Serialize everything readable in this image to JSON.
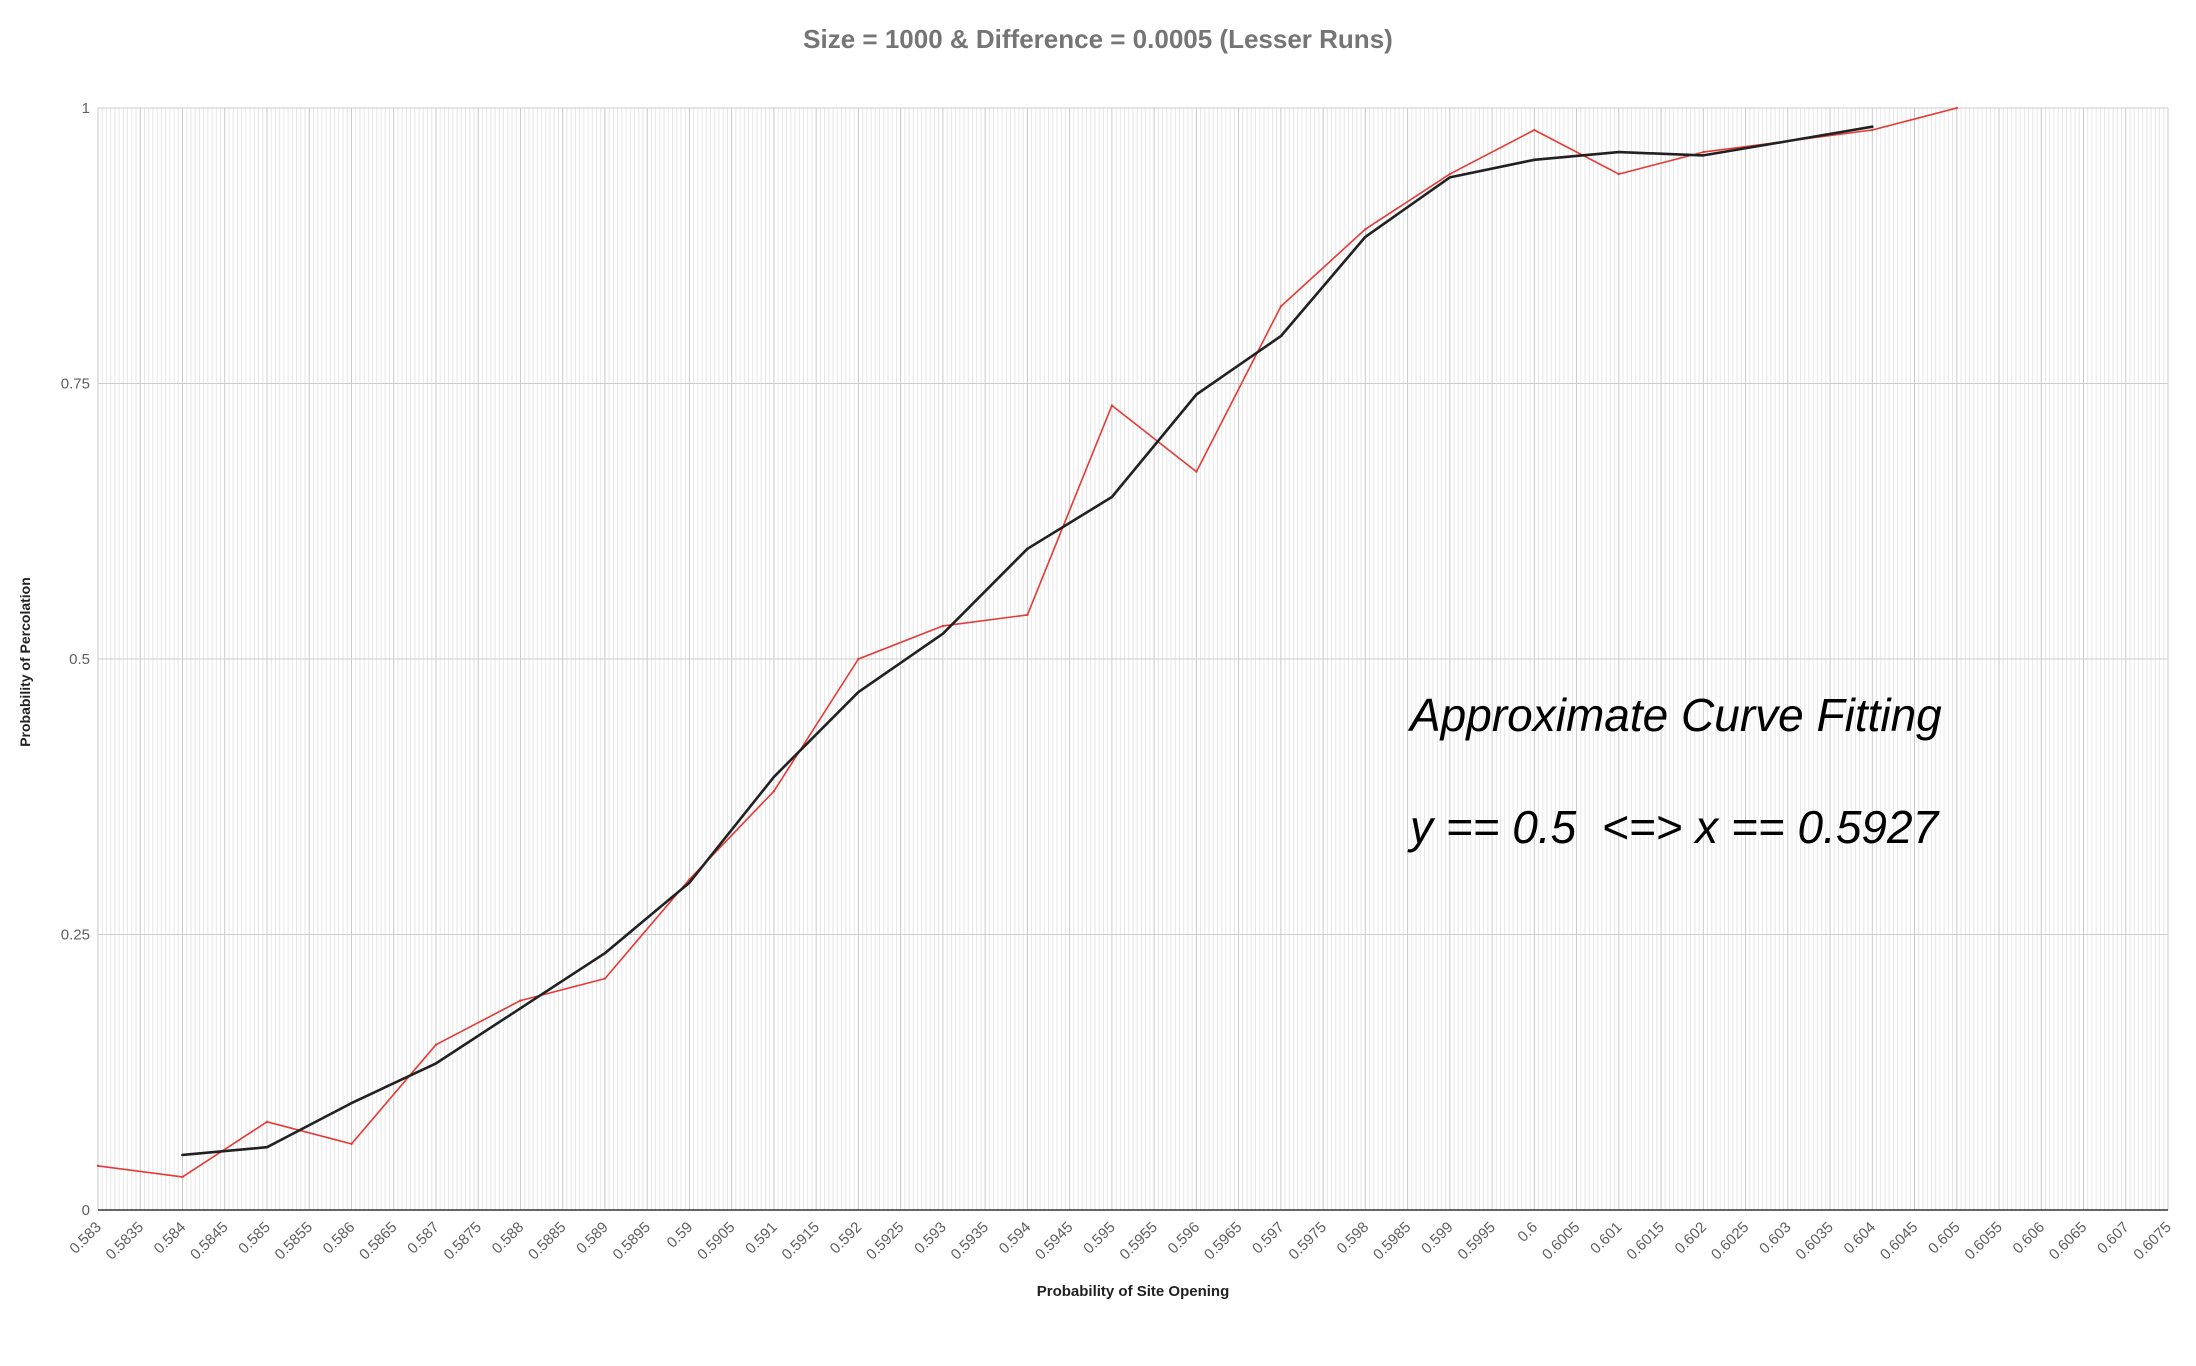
{
  "chart_data": {
    "type": "line",
    "title": "Size = 1000 & Difference  = 0.0005 (Lesser Runs)",
    "xlabel": "Probability of Site Opening",
    "ylabel": "Probability of Percolation",
    "xlim": [
      0.583,
      0.6075
    ],
    "ylim": [
      0,
      1
    ],
    "x_ticks": [
      "0.583",
      "0.5835",
      "0.584",
      "0.5845",
      "0.585",
      "0.5855",
      "0.586",
      "0.5865",
      "0.587",
      "0.5875",
      "0.588",
      "0.5885",
      "0.589",
      "0.5895",
      "0.59",
      "0.5905",
      "0.591",
      "0.5915",
      "0.592",
      "0.5925",
      "0.593",
      "0.5935",
      "0.594",
      "0.5945",
      "0.595",
      "0.5955",
      "0.596",
      "0.5965",
      "0.597",
      "0.5975",
      "0.598",
      "0.5985",
      "0.599",
      "0.5995",
      "0.6",
      "0.6005",
      "0.601",
      "0.6015",
      "0.602",
      "0.6025",
      "0.603",
      "0.6035",
      "0.604",
      "0.6045",
      "0.605",
      "0.6055",
      "0.606",
      "0.6065",
      "0.607",
      "0.6075"
    ],
    "y_ticks": [
      "0",
      "0.25",
      "0.5",
      "0.75",
      "1"
    ],
    "grid": true,
    "series": [
      {
        "color": "#e53935",
        "x": [
          0.583,
          0.584,
          0.585,
          0.586,
          0.587,
          0.588,
          0.589,
          0.59,
          0.591,
          0.592,
          0.593,
          0.594,
          0.595,
          0.596,
          0.597,
          0.598,
          0.599,
          0.6,
          0.601,
          0.602,
          0.603,
          0.604,
          0.605
        ],
        "values": [
          0.04,
          0.03,
          0.08,
          0.06,
          0.15,
          0.19,
          0.21,
          0.3,
          0.38,
          0.5,
          0.53,
          0.54,
          0.73,
          0.67,
          0.82,
          0.89,
          0.94,
          0.98,
          0.94,
          0.96,
          0.97,
          0.98,
          1.0
        ]
      },
      {
        "color": "#212121",
        "x": [
          0.584,
          0.585,
          0.586,
          0.587,
          0.588,
          0.589,
          0.59,
          0.591,
          0.592,
          0.593,
          0.594,
          0.595,
          0.596,
          0.597,
          0.598,
          0.599,
          0.6,
          0.601,
          0.602,
          0.603,
          0.604
        ],
        "values": [
          0.05,
          0.057,
          0.097,
          0.133,
          0.183,
          0.233,
          0.297,
          0.393,
          0.47,
          0.523,
          0.6,
          0.647,
          0.74,
          0.793,
          0.883,
          0.937,
          0.953,
          0.96,
          0.957,
          0.97,
          0.983
        ]
      }
    ],
    "annotations": [
      "Approximate Curve Fitting",
      "y == 0.5  <=> x == 0.5927"
    ]
  }
}
